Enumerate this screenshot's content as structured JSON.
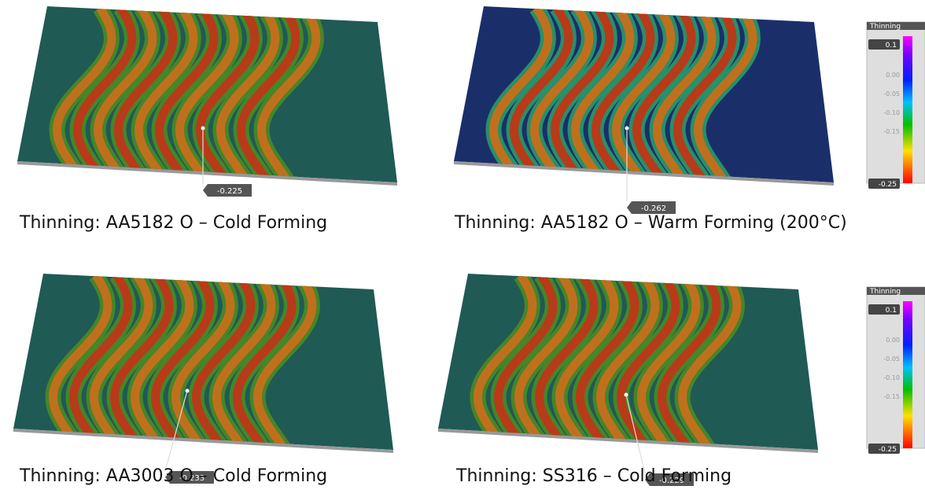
{
  "panels": [
    {
      "caption": "Thinning: AA5182 O – Cold Forming",
      "probe": "-0.225"
    },
    {
      "caption": "Thinning: AA5182 O – Warm Forming (200°C)",
      "probe": "-0.262"
    },
    {
      "caption": "Thinning: AA3003 O – Cold Forming",
      "probe": "-0.233"
    },
    {
      "caption": "Thinning: SS316 – Cold Forming",
      "probe": "-0.229"
    }
  ],
  "legends": [
    {
      "title": "Thinning",
      "max": "0.1",
      "ticks": [
        "0.00",
        "-0.05",
        "-0.10",
        "-0.15"
      ],
      "min": "-0.25"
    },
    {
      "title": "Thinning",
      "max": "0.1",
      "ticks": [
        "0.00",
        "-0.05",
        "-0.10",
        "-0.15"
      ],
      "min": "-0.25"
    }
  ]
}
